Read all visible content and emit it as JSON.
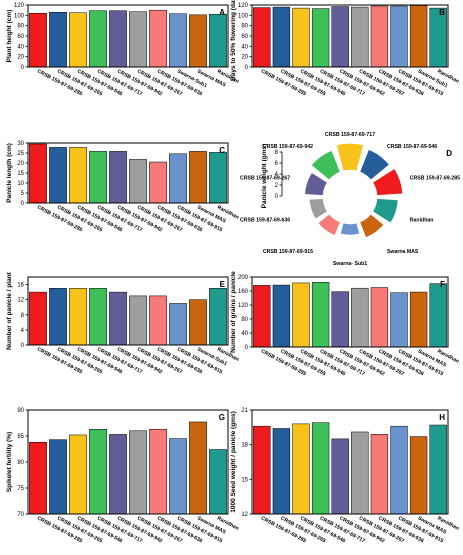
{
  "category_colors": [
    "#ee1c1c",
    "#245f9c",
    "#f7c31a",
    "#3fbf5a",
    "#625d96",
    "#9e9e9e",
    "#f67a78",
    "#6a92cc",
    "#c8650e",
    "#1e9b8c"
  ],
  "chart_data": [
    {
      "type": "bar",
      "panel": "A",
      "ylabel": "Plant height (cm)",
      "ylim": [
        0,
        120
      ],
      "yticks": [
        0,
        20,
        40,
        60,
        80,
        100,
        120
      ],
      "categories": [
        "CRSB 159-87-69-285",
        "CRSB 159-87-69-265",
        "CRSB 159-87-69-546",
        "CRSB 159-87-69-717",
        "CRSB 159-87-69-942",
        "CRSB 159-87-69-267",
        "CRSB 159-87-69-636",
        "Swarna-Sub1",
        "Swarna MAS",
        "Ranidhan"
      ],
      "values": [
        104,
        106,
        105,
        109,
        109,
        107,
        110,
        103,
        101,
        102
      ]
    },
    {
      "type": "bar",
      "panel": "B",
      "ylabel": "Days to 50% flowering (days)",
      "ylim": [
        0,
        120
      ],
      "yticks": [
        0,
        20,
        40,
        60,
        80,
        100,
        120
      ],
      "categories": [
        "CRSB 159-87-69-285",
        "CRSB 159-87-69-265",
        "CRSB 159-87-69-546",
        "CRSB 159-87-69-717",
        "CRSB 159-87-69-942",
        "CRSB 159-87-69-267",
        "CRSB 159-87-69-636",
        "CRSB 159-87-69-915",
        "Swarna-Sub1",
        "Ranidhan"
      ],
      "values": [
        115,
        116,
        114,
        113,
        117,
        116,
        118,
        118,
        119,
        114
      ]
    },
    {
      "type": "bar",
      "panel": "C",
      "ylabel": "Panicle length (cm)",
      "ylim": [
        0,
        30
      ],
      "yticks": [
        0,
        5,
        10,
        15,
        20,
        25,
        30
      ],
      "categories": [
        "CRSB 159-87-69-285",
        "CRSB 159-87-69-265",
        "CRSB 159-87-69-546",
        "CRSB 159-87-69-717",
        "CRSB 159-87-69-942",
        "CRSB 159-87-69-267",
        "CRSB 159-87-69-636",
        "CRSB 159-87-69-915",
        "Swarna MAS",
        "Ranidhan"
      ],
      "values": [
        29.5,
        27.8,
        27.8,
        25.8,
        25.8,
        21.8,
        20.5,
        24.6,
        25.8,
        25.3
      ]
    },
    {
      "type": "pie",
      "panel": "D",
      "subtype": "nightingale-rose",
      "ylabel": "Panicle weight (gms)",
      "ylim": [
        0,
        8
      ],
      "yticks": [
        0,
        2,
        4,
        6,
        8
      ],
      "categories": [
        "CRSB 159-87-69-717",
        "CRSB 159-87-69-546",
        "CRSB 159-87-69-285",
        "Ranidhan",
        "Swarna MAS",
        "Swarna- Sub1",
        "CRSB 159-87-69-915",
        "CRSB 159-87-69-636",
        "CRSB 159-87-69-267",
        "CRSB 159-87-69-942"
      ],
      "values": [
        5.8,
        5.2,
        5.6,
        4.6,
        3.6,
        2.4,
        3.1,
        3.0,
        4.0,
        5.0
      ],
      "colors": [
        "#f7c31a",
        "#245f9c",
        "#ee1c1c",
        "#1e9b8c",
        "#c8650e",
        "#6a92cc",
        "#f67a78",
        "#9e9e9e",
        "#625d96",
        "#3fbf5a"
      ]
    },
    {
      "type": "bar",
      "panel": "E",
      "ylabel": "Number of panicle / plant",
      "ylim": [
        0,
        18
      ],
      "yticks": [
        0,
        4,
        8,
        12,
        16
      ],
      "categories": [
        "CRSB 159-87-69-285",
        "CRSB 159-87-69-265",
        "CRSB 159-87-69-546",
        "CRSB 159-87-69-717",
        "CRSB 159-87-69-942",
        "CRSB 159-87-69-267",
        "CRSB 159-87-69-636",
        "CRSB 159-87-69-915",
        "Swarna-Sub1",
        "Ranidhan"
      ],
      "values": [
        14,
        15,
        15,
        15,
        14,
        13,
        13,
        11,
        12,
        15
      ]
    },
    {
      "type": "bar",
      "panel": "F",
      "ylabel": "Number of grains / panicle",
      "ylim": [
        0,
        200
      ],
      "yticks": [
        0,
        40,
        80,
        120,
        160,
        200
      ],
      "categories": [
        "CRSB 159-87-69-285",
        "CRSB 159-87-69-265",
        "CRSB 159-87-69-546",
        "CRSB 159-87-69-717",
        "CRSB 159-87-69-942",
        "CRSB 159-87-69-267",
        "CRSB 159-87-69-636",
        "CRSB 159-87-69-915",
        "Swarna MAS",
        "Ranidhan"
      ],
      "values": [
        176,
        177,
        183,
        185,
        158,
        168,
        170,
        155,
        157,
        181
      ]
    },
    {
      "type": "bar",
      "panel": "G",
      "ylabel": "Spikelet fertility (%)",
      "ylim": [
        70,
        90
      ],
      "yticks": [
        70,
        75,
        80,
        85,
        90
      ],
      "categories": [
        "CRSB 159-87-69-285",
        "CRSB 159-87-69-265",
        "CRSB 159-87-69-546",
        "CRSB 159-87-69-717",
        "CRSB 159-87-69-942",
        "CRSB 159-87-69-267",
        "CRSB 159-87-69-636",
        "CRSB 159-87-69-915",
        "Swarna MAS",
        "Ranidhan"
      ],
      "values": [
        83.8,
        84.3,
        85.2,
        86.3,
        85.3,
        86.0,
        86.3,
        84.5,
        87.7,
        82.4
      ]
    },
    {
      "type": "bar",
      "panel": "H",
      "ylabel": "1000 Seed weight / panicle (gms)",
      "ylim": [
        12,
        21
      ],
      "yticks": [
        12,
        15,
        18,
        21
      ],
      "categories": [
        "CRSB 159-87-69-285",
        "CRSB 159-87-69-265",
        "CRSB 159-87-69-546",
        "CRSB 159-87-69-717",
        "CRSB 159-87-69-942",
        "CRSB 159-87-69-267",
        "CRSB 159-87-69-636",
        "CRSB 159-87-69-915",
        "Swarna MAS",
        "Ranidhan"
      ],
      "values": [
        19.6,
        19.4,
        19.8,
        19.9,
        18.5,
        19.1,
        18.9,
        19.6,
        18.7,
        19.7
      ]
    }
  ]
}
